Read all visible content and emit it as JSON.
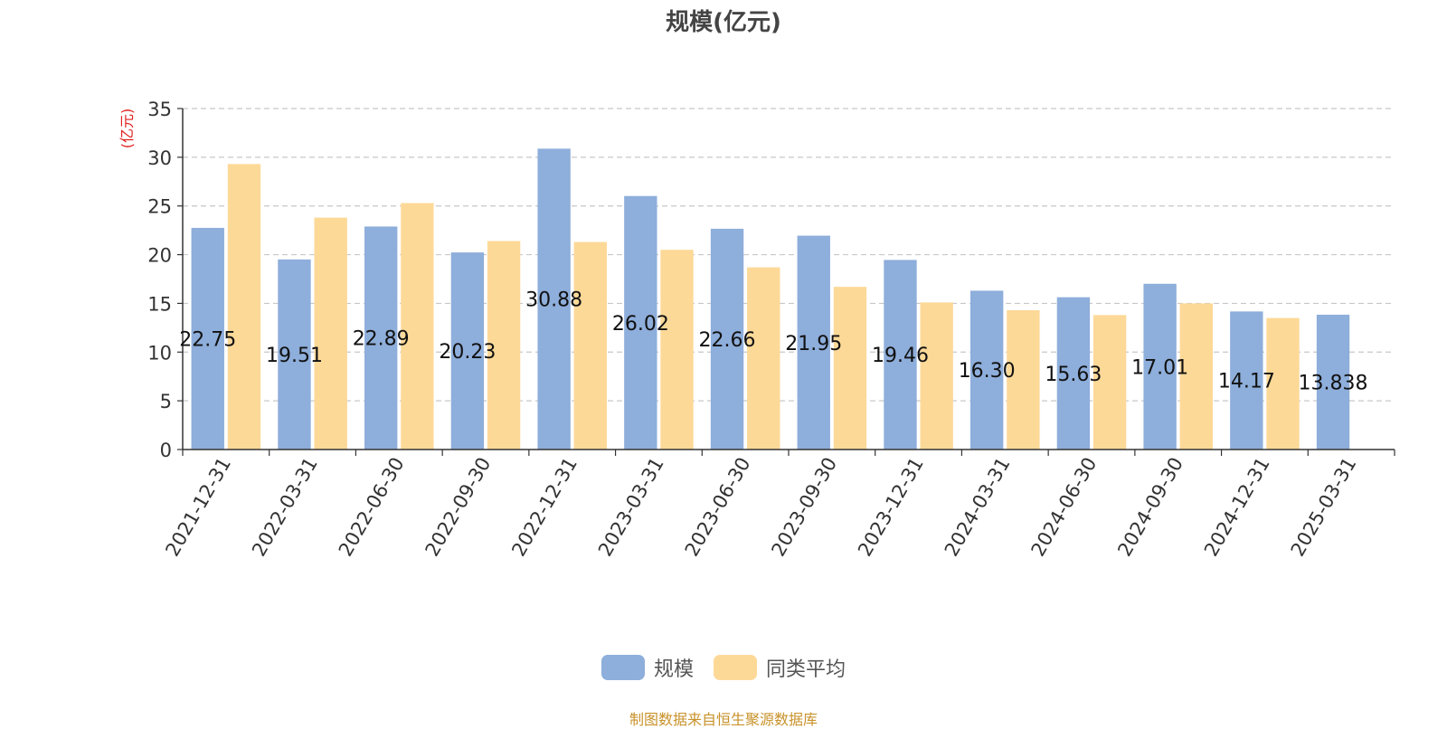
{
  "chart_data": {
    "type": "bar",
    "title": "规模(亿元)",
    "ylabel": "(亿元)",
    "xlabel": "",
    "ylim": [
      0,
      35
    ],
    "yticks": [
      0,
      5,
      10,
      15,
      20,
      25,
      30,
      35
    ],
    "grid": true,
    "legend_position": "bottom",
    "categories": [
      "2021-12-31",
      "2022-03-31",
      "2022-06-30",
      "2022-09-30",
      "2022-12-31",
      "2023-03-31",
      "2023-06-30",
      "2023-09-30",
      "2023-12-31",
      "2024-03-31",
      "2024-06-30",
      "2024-09-30",
      "2024-12-31",
      "2025-03-31"
    ],
    "series": [
      {
        "name": "规模",
        "color": "#8eaedb",
        "values": [
          22.75,
          19.51,
          22.89,
          20.23,
          30.88,
          26.02,
          22.66,
          21.95,
          19.46,
          16.3,
          15.63,
          17.01,
          14.17,
          13.838
        ],
        "labels": [
          "22.75",
          "19.51",
          "22.89",
          "20.23",
          "30.88",
          "26.02",
          "22.66",
          "21.95",
          "19.46",
          "16.30",
          "15.63",
          "17.01",
          "14.17",
          "13.838"
        ]
      },
      {
        "name": "同类平均",
        "color": "#fdd998",
        "values": [
          29.3,
          23.8,
          25.3,
          21.4,
          21.3,
          20.5,
          18.7,
          16.7,
          15.1,
          14.3,
          13.8,
          15.0,
          13.5,
          null
        ]
      }
    ]
  },
  "footer": {
    "source": "制图数据来自恒生聚源数据库"
  }
}
